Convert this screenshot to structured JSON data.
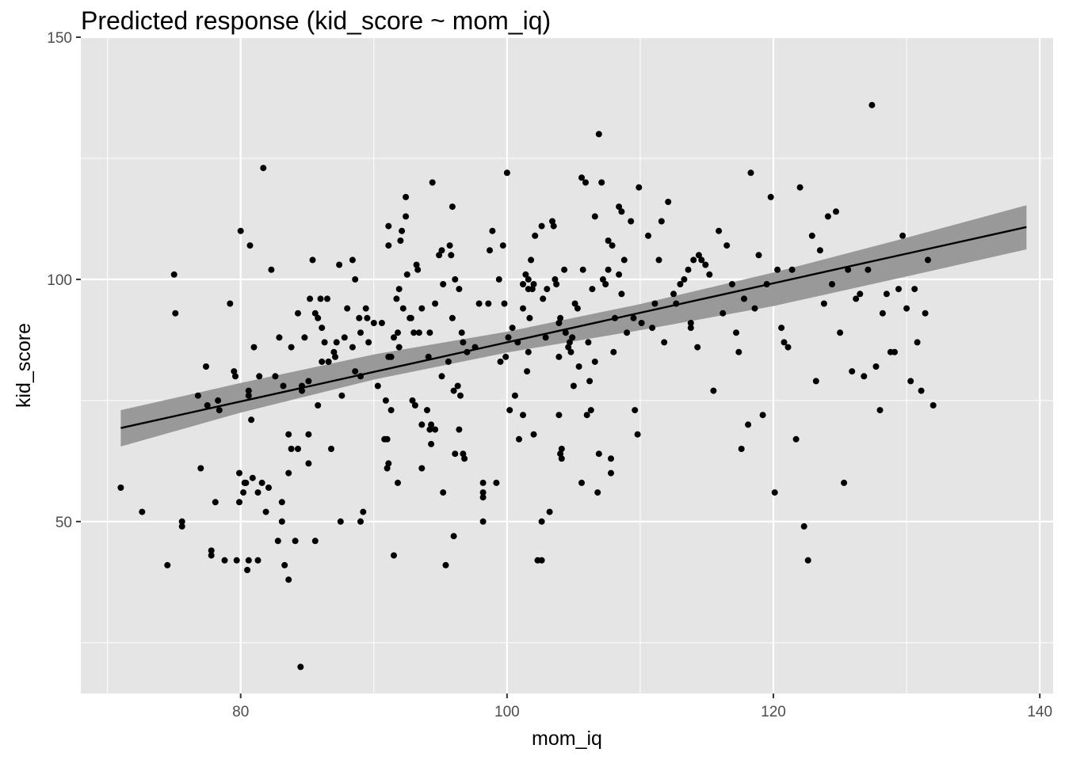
{
  "chart_data": {
    "type": "scatter",
    "title": "Predicted response (kid_score ~ mom_iq)",
    "xlabel": "mom_iq",
    "ylabel": "kid_score",
    "xlim": [
      68,
      141
    ],
    "ylim": [
      14.5,
      150
    ],
    "x_ticks": [
      80,
      100,
      120,
      140
    ],
    "x_tick_labels": [
      "80",
      "100",
      "120",
      "140"
    ],
    "y_ticks": [
      50,
      100,
      150
    ],
    "y_tick_labels": [
      "50",
      "100",
      "150"
    ],
    "grid": true,
    "legend": "none",
    "colors": {
      "panel_background": "#e5e5e5",
      "grid": "#ffffff",
      "points": "#000000",
      "line": "#000000",
      "ribbon": "#999999"
    },
    "fit_line": {
      "x": [
        71.0,
        139.0
      ],
      "y": [
        69.3,
        110.8
      ]
    },
    "ribbon": {
      "x": [
        71,
        80,
        90,
        100,
        110,
        120,
        130,
        139
      ],
      "lower": [
        65.5,
        72.5,
        79.3,
        84.9,
        89.5,
        94.5,
        100.6,
        106.2
      ],
      "upper": [
        73.0,
        78.6,
        84.5,
        89.2,
        94.9,
        101.4,
        108.6,
        115.3
      ]
    },
    "points": [
      [
        71.0,
        57
      ],
      [
        72.6,
        52
      ],
      [
        74.5,
        41
      ],
      [
        75.0,
        101
      ],
      [
        75.1,
        93
      ],
      [
        75.6,
        50
      ],
      [
        75.6,
        49
      ],
      [
        76.8,
        76
      ],
      [
        77.0,
        61
      ],
      [
        77.4,
        82
      ],
      [
        77.5,
        74
      ],
      [
        77.8,
        44
      ],
      [
        77.8,
        43
      ],
      [
        78.1,
        54
      ],
      [
        78.3,
        75
      ],
      [
        78.4,
        73
      ],
      [
        78.8,
        42
      ],
      [
        79.2,
        95
      ],
      [
        79.5,
        81
      ],
      [
        79.6,
        80
      ],
      [
        79.7,
        42
      ],
      [
        79.9,
        54
      ],
      [
        79.9,
        60
      ],
      [
        80.3,
        58
      ],
      [
        80.2,
        56
      ],
      [
        80.4,
        58
      ],
      [
        80.0,
        110
      ],
      [
        80.6,
        77
      ],
      [
        80.6,
        76
      ],
      [
        80.6,
        42
      ],
      [
        80.5,
        40
      ],
      [
        80.8,
        71
      ],
      [
        80.9,
        59
      ],
      [
        80.7,
        107
      ],
      [
        81.0,
        86
      ],
      [
        81.3,
        42
      ],
      [
        81.3,
        56
      ],
      [
        81.4,
        80
      ],
      [
        81.6,
        58
      ],
      [
        81.7,
        123
      ],
      [
        81.9,
        52
      ],
      [
        82.1,
        57
      ],
      [
        82.3,
        102
      ],
      [
        82.6,
        80
      ],
      [
        82.8,
        46
      ],
      [
        82.9,
        88
      ],
      [
        83.1,
        54
      ],
      [
        83.1,
        50
      ],
      [
        83.2,
        78
      ],
      [
        83.3,
        41
      ],
      [
        83.6,
        38
      ],
      [
        83.6,
        68
      ],
      [
        83.6,
        60
      ],
      [
        83.8,
        86
      ],
      [
        83.8,
        65
      ],
      [
        84.1,
        46
      ],
      [
        84.3,
        93
      ],
      [
        84.3,
        65
      ],
      [
        84.5,
        20
      ],
      [
        84.6,
        78
      ],
      [
        84.6,
        77
      ],
      [
        84.8,
        88
      ],
      [
        85.1,
        62
      ],
      [
        85.1,
        79
      ],
      [
        85.1,
        68
      ],
      [
        85.2,
        96
      ],
      [
        85.4,
        104
      ],
      [
        85.6,
        93
      ],
      [
        85.6,
        46
      ],
      [
        85.8,
        74
      ],
      [
        85.8,
        92
      ],
      [
        86.0,
        96
      ],
      [
        86.1,
        90
      ],
      [
        86.1,
        83
      ],
      [
        86.3,
        87
      ],
      [
        86.5,
        96
      ],
      [
        86.6,
        83
      ],
      [
        86.6,
        83
      ],
      [
        86.8,
        65
      ],
      [
        87.0,
        85
      ],
      [
        87.1,
        84
      ],
      [
        87.2,
        87
      ],
      [
        87.4,
        103
      ],
      [
        87.5,
        50
      ],
      [
        87.6,
        76
      ],
      [
        87.8,
        88
      ],
      [
        88.0,
        94
      ],
      [
        88.4,
        104
      ],
      [
        88.4,
        86
      ],
      [
        88.6,
        81
      ],
      [
        88.6,
        100
      ],
      [
        88.9,
        92
      ],
      [
        89.0,
        89
      ],
      [
        89.0,
        80
      ],
      [
        89.0,
        50
      ],
      [
        89.2,
        52
      ],
      [
        89.4,
        94
      ],
      [
        89.5,
        92
      ],
      [
        89.6,
        87
      ],
      [
        90.0,
        91
      ],
      [
        90.3,
        78
      ],
      [
        90.6,
        91
      ],
      [
        90.8,
        67
      ],
      [
        90.9,
        75
      ],
      [
        91.0,
        67
      ],
      [
        91.0,
        61
      ],
      [
        91.1,
        62
      ],
      [
        91.1,
        111
      ],
      [
        91.1,
        107
      ],
      [
        91.1,
        84
      ],
      [
        91.3,
        73
      ],
      [
        91.3,
        84
      ],
      [
        91.5,
        88
      ],
      [
        91.5,
        43
      ],
      [
        91.7,
        96
      ],
      [
        91.8,
        89
      ],
      [
        91.8,
        58
      ],
      [
        91.9,
        98
      ],
      [
        91.9,
        86
      ],
      [
        92.0,
        108
      ],
      [
        92.1,
        110
      ],
      [
        92.2,
        94
      ],
      [
        92.4,
        113
      ],
      [
        92.4,
        117
      ],
      [
        92.5,
        101
      ],
      [
        92.7,
        92
      ],
      [
        92.8,
        92
      ],
      [
        92.9,
        75
      ],
      [
        93.0,
        89
      ],
      [
        93.1,
        74
      ],
      [
        93.2,
        103
      ],
      [
        93.3,
        102
      ],
      [
        93.4,
        89
      ],
      [
        93.6,
        70
      ],
      [
        93.6,
        61
      ],
      [
        93.6,
        94
      ],
      [
        94.0,
        73
      ],
      [
        94.1,
        84
      ],
      [
        94.2,
        89
      ],
      [
        94.2,
        69
      ],
      [
        94.3,
        66
      ],
      [
        94.3,
        70
      ],
      [
        94.4,
        120
      ],
      [
        94.6,
        95
      ],
      [
        94.6,
        69
      ],
      [
        94.9,
        105
      ],
      [
        95.1,
        106
      ],
      [
        95.1,
        80
      ],
      [
        95.2,
        56
      ],
      [
        95.2,
        99
      ],
      [
        95.4,
        41
      ],
      [
        95.6,
        83
      ],
      [
        95.7,
        107
      ],
      [
        95.8,
        105
      ],
      [
        95.9,
        92
      ],
      [
        95.9,
        115
      ],
      [
        96.0,
        47
      ],
      [
        96.0,
        77
      ],
      [
        96.1,
        64
      ],
      [
        96.1,
        100
      ],
      [
        96.3,
        78
      ],
      [
        96.4,
        98
      ],
      [
        96.4,
        69
      ],
      [
        96.5,
        76
      ],
      [
        96.6,
        89
      ],
      [
        96.7,
        87
      ],
      [
        96.7,
        64
      ],
      [
        96.8,
        63
      ],
      [
        97.0,
        85
      ],
      [
        97.6,
        86
      ],
      [
        97.9,
        95
      ],
      [
        98.2,
        50
      ],
      [
        98.2,
        55
      ],
      [
        98.2,
        58
      ],
      [
        98.2,
        56
      ],
      [
        98.6,
        95
      ],
      [
        98.7,
        106
      ],
      [
        98.9,
        110
      ],
      [
        99.2,
        58
      ],
      [
        99.4,
        100
      ],
      [
        99.5,
        83
      ],
      [
        99.7,
        107
      ],
      [
        99.8,
        95
      ],
      [
        99.9,
        84
      ],
      [
        100.0,
        122
      ],
      [
        100.1,
        88
      ],
      [
        100.2,
        73
      ],
      [
        100.4,
        90
      ],
      [
        100.6,
        76
      ],
      [
        100.8,
        87
      ],
      [
        100.9,
        67
      ],
      [
        101.2,
        94
      ],
      [
        101.2,
        72
      ],
      [
        101.2,
        99
      ],
      [
        101.4,
        101
      ],
      [
        101.5,
        81
      ],
      [
        101.6,
        98
      ],
      [
        101.6,
        85
      ],
      [
        101.6,
        100
      ],
      [
        101.7,
        92
      ],
      [
        101.8,
        104
      ],
      [
        101.9,
        98
      ],
      [
        102.0,
        99
      ],
      [
        102.0,
        68
      ],
      [
        102.1,
        109
      ],
      [
        102.3,
        42
      ],
      [
        102.6,
        111
      ],
      [
        102.6,
        50
      ],
      [
        102.6,
        42
      ],
      [
        102.7,
        96
      ],
      [
        102.9,
        88
      ],
      [
        103.0,
        98
      ],
      [
        103.2,
        52
      ],
      [
        103.4,
        112
      ],
      [
        103.5,
        111
      ],
      [
        103.6,
        100
      ],
      [
        103.7,
        99
      ],
      [
        103.9,
        72
      ],
      [
        103.9,
        91
      ],
      [
        103.9,
        84
      ],
      [
        104.0,
        92
      ],
      [
        104.0,
        64
      ],
      [
        104.1,
        63
      ],
      [
        104.1,
        65
      ],
      [
        104.3,
        102
      ],
      [
        104.4,
        89
      ],
      [
        104.6,
        86
      ],
      [
        104.7,
        87
      ],
      [
        104.8,
        85
      ],
      [
        104.9,
        88
      ],
      [
        105.0,
        78
      ],
      [
        105.1,
        95
      ],
      [
        105.3,
        94
      ],
      [
        105.4,
        82
      ],
      [
        105.6,
        121
      ],
      [
        105.6,
        58
      ],
      [
        105.7,
        102
      ],
      [
        105.9,
        120
      ],
      [
        106.0,
        72
      ],
      [
        106.1,
        87
      ],
      [
        106.2,
        79
      ],
      [
        106.3,
        73
      ],
      [
        106.4,
        98
      ],
      [
        106.6,
        113
      ],
      [
        106.6,
        83
      ],
      [
        106.8,
        56
      ],
      [
        106.9,
        130
      ],
      [
        106.9,
        64
      ],
      [
        107.1,
        120
      ],
      [
        107.2,
        100
      ],
      [
        107.4,
        99
      ],
      [
        107.6,
        102
      ],
      [
        107.6,
        108
      ],
      [
        107.8,
        60
      ],
      [
        107.8,
        63
      ],
      [
        107.9,
        107
      ],
      [
        108.0,
        85
      ],
      [
        108.1,
        92
      ],
      [
        108.4,
        101
      ],
      [
        108.4,
        115
      ],
      [
        108.6,
        114
      ],
      [
        108.6,
        97
      ],
      [
        108.8,
        104
      ],
      [
        109.0,
        89
      ],
      [
        109.3,
        112
      ],
      [
        109.5,
        92
      ],
      [
        109.6,
        73
      ],
      [
        109.8,
        68
      ],
      [
        109.9,
        119
      ],
      [
        110.1,
        91
      ],
      [
        110.6,
        109
      ],
      [
        110.9,
        90
      ],
      [
        111.1,
        95
      ],
      [
        111.4,
        104
      ],
      [
        111.6,
        112
      ],
      [
        111.8,
        87
      ],
      [
        112.1,
        116
      ],
      [
        112.5,
        97
      ],
      [
        112.7,
        95
      ],
      [
        113.0,
        99
      ],
      [
        113.3,
        100
      ],
      [
        113.6,
        102
      ],
      [
        113.8,
        91
      ],
      [
        113.8,
        90
      ],
      [
        114.0,
        104
      ],
      [
        114.3,
        86
      ],
      [
        114.4,
        105
      ],
      [
        114.6,
        104
      ],
      [
        114.9,
        103
      ],
      [
        115.2,
        101
      ],
      [
        115.5,
        77
      ],
      [
        115.9,
        110
      ],
      [
        116.2,
        93
      ],
      [
        116.5,
        107
      ],
      [
        116.9,
        99
      ],
      [
        117.2,
        89
      ],
      [
        117.4,
        85
      ],
      [
        117.6,
        65
      ],
      [
        117.8,
        96
      ],
      [
        118.1,
        70
      ],
      [
        118.3,
        122
      ],
      [
        118.6,
        94
      ],
      [
        118.9,
        105
      ],
      [
        119.2,
        72
      ],
      [
        119.5,
        99
      ],
      [
        119.8,
        117
      ],
      [
        120.1,
        56
      ],
      [
        120.3,
        102
      ],
      [
        120.6,
        90
      ],
      [
        120.8,
        87
      ],
      [
        121.1,
        86
      ],
      [
        121.4,
        102
      ],
      [
        121.7,
        67
      ],
      [
        122.0,
        119
      ],
      [
        122.3,
        49
      ],
      [
        122.6,
        42
      ],
      [
        122.9,
        109
      ],
      [
        123.2,
        79
      ],
      [
        123.5,
        106
      ],
      [
        123.8,
        95
      ],
      [
        124.1,
        113
      ],
      [
        124.4,
        99
      ],
      [
        124.7,
        114
      ],
      [
        125.0,
        89
      ],
      [
        125.3,
        58
      ],
      [
        125.6,
        102
      ],
      [
        125.9,
        81
      ],
      [
        126.2,
        96
      ],
      [
        126.5,
        97
      ],
      [
        126.8,
        80
      ],
      [
        127.1,
        102
      ],
      [
        127.4,
        136
      ],
      [
        127.7,
        82
      ],
      [
        128.0,
        73
      ],
      [
        128.2,
        93
      ],
      [
        128.5,
        97
      ],
      [
        128.8,
        85
      ],
      [
        129.1,
        85
      ],
      [
        129.4,
        98
      ],
      [
        129.7,
        109
      ],
      [
        130.0,
        94
      ],
      [
        130.3,
        79
      ],
      [
        130.6,
        98
      ],
      [
        130.8,
        87
      ],
      [
        131.1,
        77
      ],
      [
        131.4,
        93
      ],
      [
        131.6,
        104
      ],
      [
        132.0,
        74
      ]
    ]
  }
}
